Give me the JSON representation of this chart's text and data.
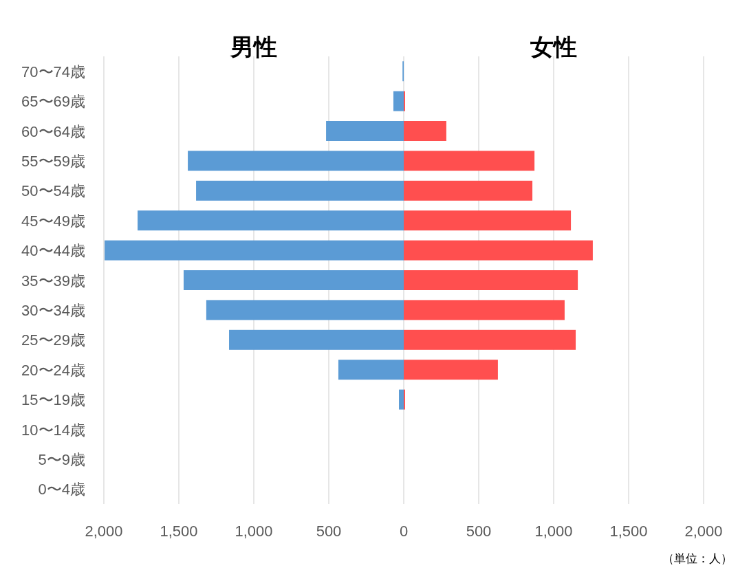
{
  "chart_data": {
    "type": "bar",
    "orientation": "horizontal",
    "categories": [
      "70〜74歳",
      "65〜69歳",
      "60〜64歳",
      "55〜59歳",
      "50〜54歳",
      "45〜49歳",
      "40〜44歳",
      "35〜39歳",
      "30〜34歳",
      "25〜29歳",
      "20〜24歳",
      "15〜19歳",
      "10〜14歳",
      "5〜9歳",
      "0〜4歳"
    ],
    "series": [
      {
        "color": "#5b9bd5",
        "values": [
          -8,
          -69,
          -518,
          -1440,
          -1385,
          -1775,
          -1995,
          -1468,
          -1317,
          -1165,
          -436,
          -32,
          0,
          0,
          0
        ]
      },
      {
        "color": "#ff4f4f",
        "values": [
          0,
          9,
          284,
          872,
          858,
          1115,
          1261,
          1161,
          1073,
          1147,
          628,
          9,
          0,
          0,
          0
        ]
      }
    ],
    "xlim": [
      -2000,
      2000
    ],
    "xticks": [
      {
        "value": -2000,
        "label": "2,000"
      },
      {
        "value": -1500,
        "label": "1,500"
      },
      {
        "value": -1000,
        "label": "1,000"
      },
      {
        "value": -500,
        "label": "500"
      },
      0,
      500,
      {
        "value": 1000,
        "label": "1,000"
      },
      {
        "value": 1500,
        "label": "1,500"
      },
      {
        "value": 2000,
        "label": "2,000"
      }
    ],
    "grid": "x",
    "stacked": true,
    "annotations": [
      "男性",
      "女性",
      "（単位：人）"
    ]
  }
}
